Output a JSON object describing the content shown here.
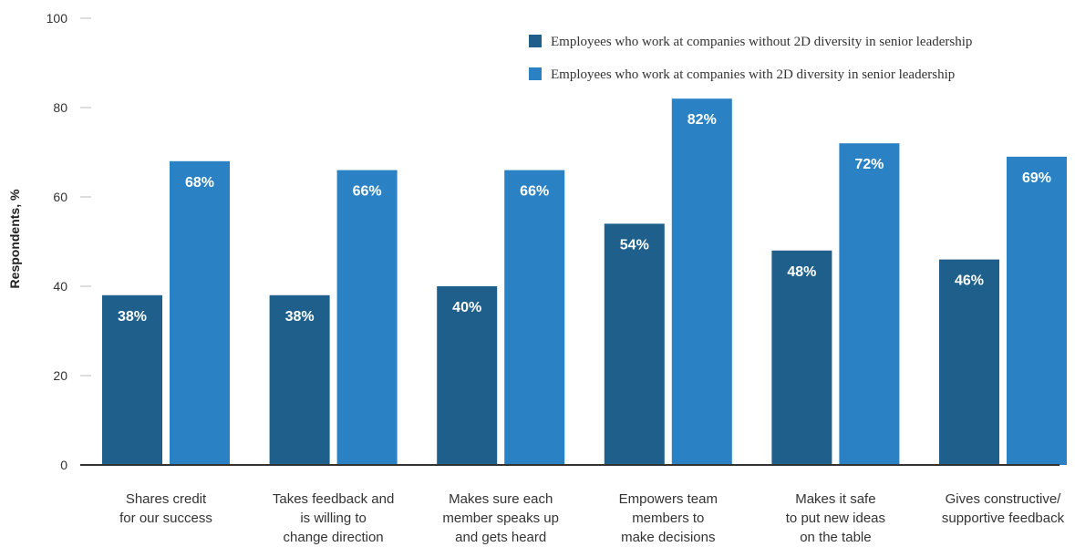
{
  "chart_data": {
    "type": "bar",
    "ylabel": "Respondents, %",
    "xlabel": "",
    "ylim": [
      0,
      100
    ],
    "yticks": [
      0,
      20,
      40,
      60,
      80,
      100
    ],
    "grid": false,
    "legend_position": "top-right",
    "categories": [
      [
        "Shares credit",
        "for our success"
      ],
      [
        "Takes feedback and",
        "is willing to",
        "change direction"
      ],
      [
        "Makes sure each",
        "member speaks up",
        "and gets heard"
      ],
      [
        "Empowers team",
        "members to",
        "make decisions"
      ],
      [
        "Makes it safe",
        "to put new ideas",
        "on the table"
      ],
      [
        "Gives constructive/",
        "supportive feedback"
      ]
    ],
    "series": [
      {
        "name": "Employees who work at companies without 2D diversity in senior leadership",
        "color": "#1f5f8b",
        "values": [
          38,
          38,
          40,
          54,
          48,
          46
        ],
        "labels": [
          "38%",
          "38%",
          "40%",
          "54%",
          "48%",
          "46%"
        ]
      },
      {
        "name": "Employees who work at companies with 2D diversity in senior leadership",
        "color": "#2a82c4",
        "values": [
          68,
          66,
          66,
          82,
          72,
          69
        ],
        "labels": [
          "68%",
          "66%",
          "66%",
          "82%",
          "72%",
          "69%"
        ]
      }
    ]
  }
}
